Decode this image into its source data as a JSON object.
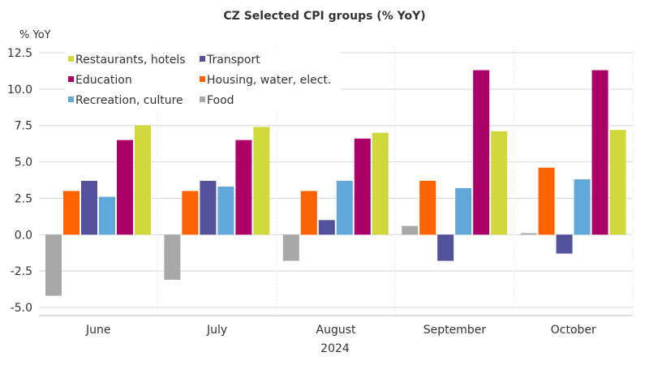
{
  "chart_data": {
    "type": "bar",
    "title": "CZ Selected CPI groups (% YoY)",
    "ylabel": "% YoY",
    "xlabel": "2024",
    "categories": [
      "June",
      "July",
      "August",
      "September",
      "October"
    ],
    "ylim": [
      -5,
      12.5
    ],
    "yticks": [
      "12.5",
      "10.0",
      "7.5",
      "5.0",
      "2.5",
      "0.0",
      "-2.5",
      "-5.0"
    ],
    "grid": true,
    "legend": "top-left",
    "legend_order": [
      "Restaurants, hotels",
      "Transport",
      "Education",
      "Housing, water, elect.",
      "Recreation, culture",
      "Food"
    ],
    "series": [
      {
        "name": "Food",
        "color": "#a8a8a8",
        "values": [
          -4.2,
          -3.1,
          -1.8,
          0.6,
          0.1
        ]
      },
      {
        "name": "Housing, water, elect.",
        "color": "#ff6200",
        "values": [
          3.0,
          3.0,
          3.0,
          3.7,
          4.6
        ]
      },
      {
        "name": "Transport",
        "color": "#525199",
        "values": [
          3.7,
          3.7,
          1.0,
          -1.8,
          -1.3
        ]
      },
      {
        "name": "Recreation, culture",
        "color": "#60a7da",
        "values": [
          2.6,
          3.3,
          3.7,
          3.2,
          3.8
        ]
      },
      {
        "name": "Education",
        "color": "#ab0066",
        "values": [
          6.5,
          6.5,
          6.6,
          11.3,
          11.3
        ]
      },
      {
        "name": "Restaurants, hotels",
        "color": "#d0d93c",
        "values": [
          7.5,
          7.4,
          7.0,
          7.1,
          7.2
        ]
      }
    ]
  }
}
